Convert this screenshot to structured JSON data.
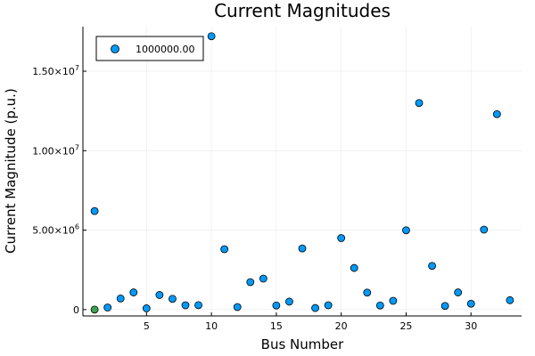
{
  "chart_data": {
    "type": "scatter",
    "title": "Current Magnitudes",
    "xlabel": "Bus Number",
    "ylabel": "Current Magnitude (p.u.)",
    "xlim": [
      0.1,
      33.9
    ],
    "ylim": [
      -400000,
      17800000
    ],
    "grid": true,
    "legend_position": "top-left",
    "x_ticks": [
      {
        "value": 5,
        "label": "5"
      },
      {
        "value": 10,
        "label": "10"
      },
      {
        "value": 15,
        "label": "15"
      },
      {
        "value": 20,
        "label": "20"
      },
      {
        "value": 25,
        "label": "25"
      },
      {
        "value": 30,
        "label": "30"
      }
    ],
    "y_ticks": [
      {
        "value": 0,
        "label": "0",
        "exp": ""
      },
      {
        "value": 5000000,
        "label": "5.00×10",
        "exp": "6"
      },
      {
        "value": 10000000,
        "label": "1.00×10",
        "exp": "7"
      },
      {
        "value": 15000000,
        "label": "1.50×10",
        "exp": "7"
      }
    ],
    "series": [
      {
        "name": "1000000.00",
        "color": "#009AFA",
        "x": [
          1,
          2,
          3,
          4,
          5,
          6,
          7,
          8,
          9,
          10,
          11,
          12,
          13,
          14,
          15,
          16,
          17,
          18,
          19,
          20,
          21,
          22,
          23,
          24,
          25,
          26,
          27,
          28,
          29,
          30,
          31,
          32,
          33
        ],
        "y": [
          6200000,
          130000,
          700000,
          1080000,
          80000,
          920000,
          680000,
          270000,
          280000,
          17200000,
          3800000,
          160000,
          1730000,
          1950000,
          260000,
          500000,
          3850000,
          100000,
          270000,
          4500000,
          2620000,
          1070000,
          260000,
          550000,
          4990000,
          13000000,
          2750000,
          230000,
          1080000,
          370000,
          5030000,
          12300000,
          590000
        ]
      },
      {
        "name": "",
        "color": "#3DA44D",
        "x": [
          1
        ],
        "y": [
          0
        ]
      }
    ]
  }
}
